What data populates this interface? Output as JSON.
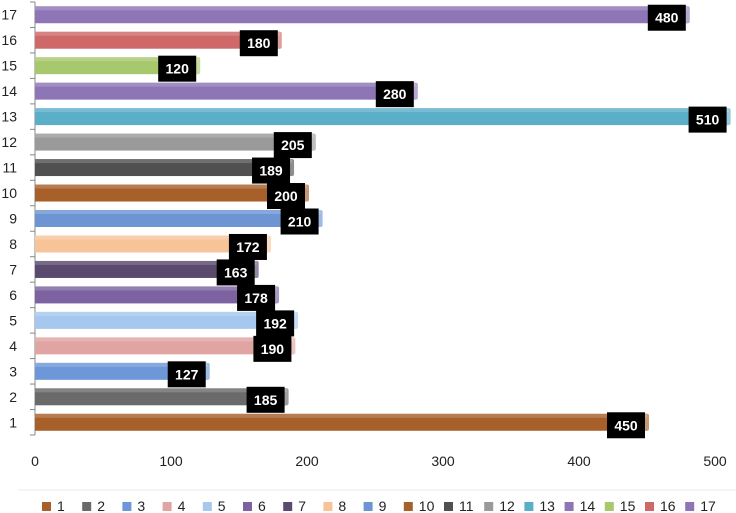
{
  "chart_data": {
    "type": "bar",
    "orientation": "horizontal",
    "title": "",
    "xlabel": "",
    "ylabel": "",
    "categories": [
      "1",
      "2",
      "3",
      "4",
      "5",
      "6",
      "7",
      "8",
      "9",
      "10",
      "11",
      "12",
      "13",
      "14",
      "15",
      "16",
      "17"
    ],
    "values": [
      450,
      185,
      127,
      190,
      192,
      178,
      163,
      172,
      210,
      200,
      189,
      205,
      510,
      280,
      120,
      180,
      480
    ],
    "colors": [
      "#a8602a",
      "#6a6a6a",
      "#6d97d8",
      "#e0a4a2",
      "#a6c8ee",
      "#7c62a0",
      "#5a4a6e",
      "#f7c49a",
      "#6d95d4",
      "#a8602a",
      "#505050",
      "#9a9a9a",
      "#5aaec8",
      "#8e76b6",
      "#a8c86e",
      "#cf6868",
      "#8e76b6"
    ],
    "xlim": [
      0,
      500
    ],
    "xticks": [
      "0",
      "100",
      "200",
      "300",
      "400",
      "500"
    ],
    "grid": false,
    "legend_position": "bottom",
    "legend": [
      "1",
      "2",
      "3",
      "4",
      "5",
      "6",
      "7",
      "8",
      "9",
      "10",
      "11",
      "12",
      "13",
      "14",
      "15",
      "16",
      "17"
    ],
    "data_labels": [
      "450",
      "185",
      "127",
      "190",
      "192",
      "178",
      "163",
      "172",
      "210",
      "200",
      "189",
      "205",
      "510",
      "280",
      "120",
      "180",
      "480"
    ]
  }
}
